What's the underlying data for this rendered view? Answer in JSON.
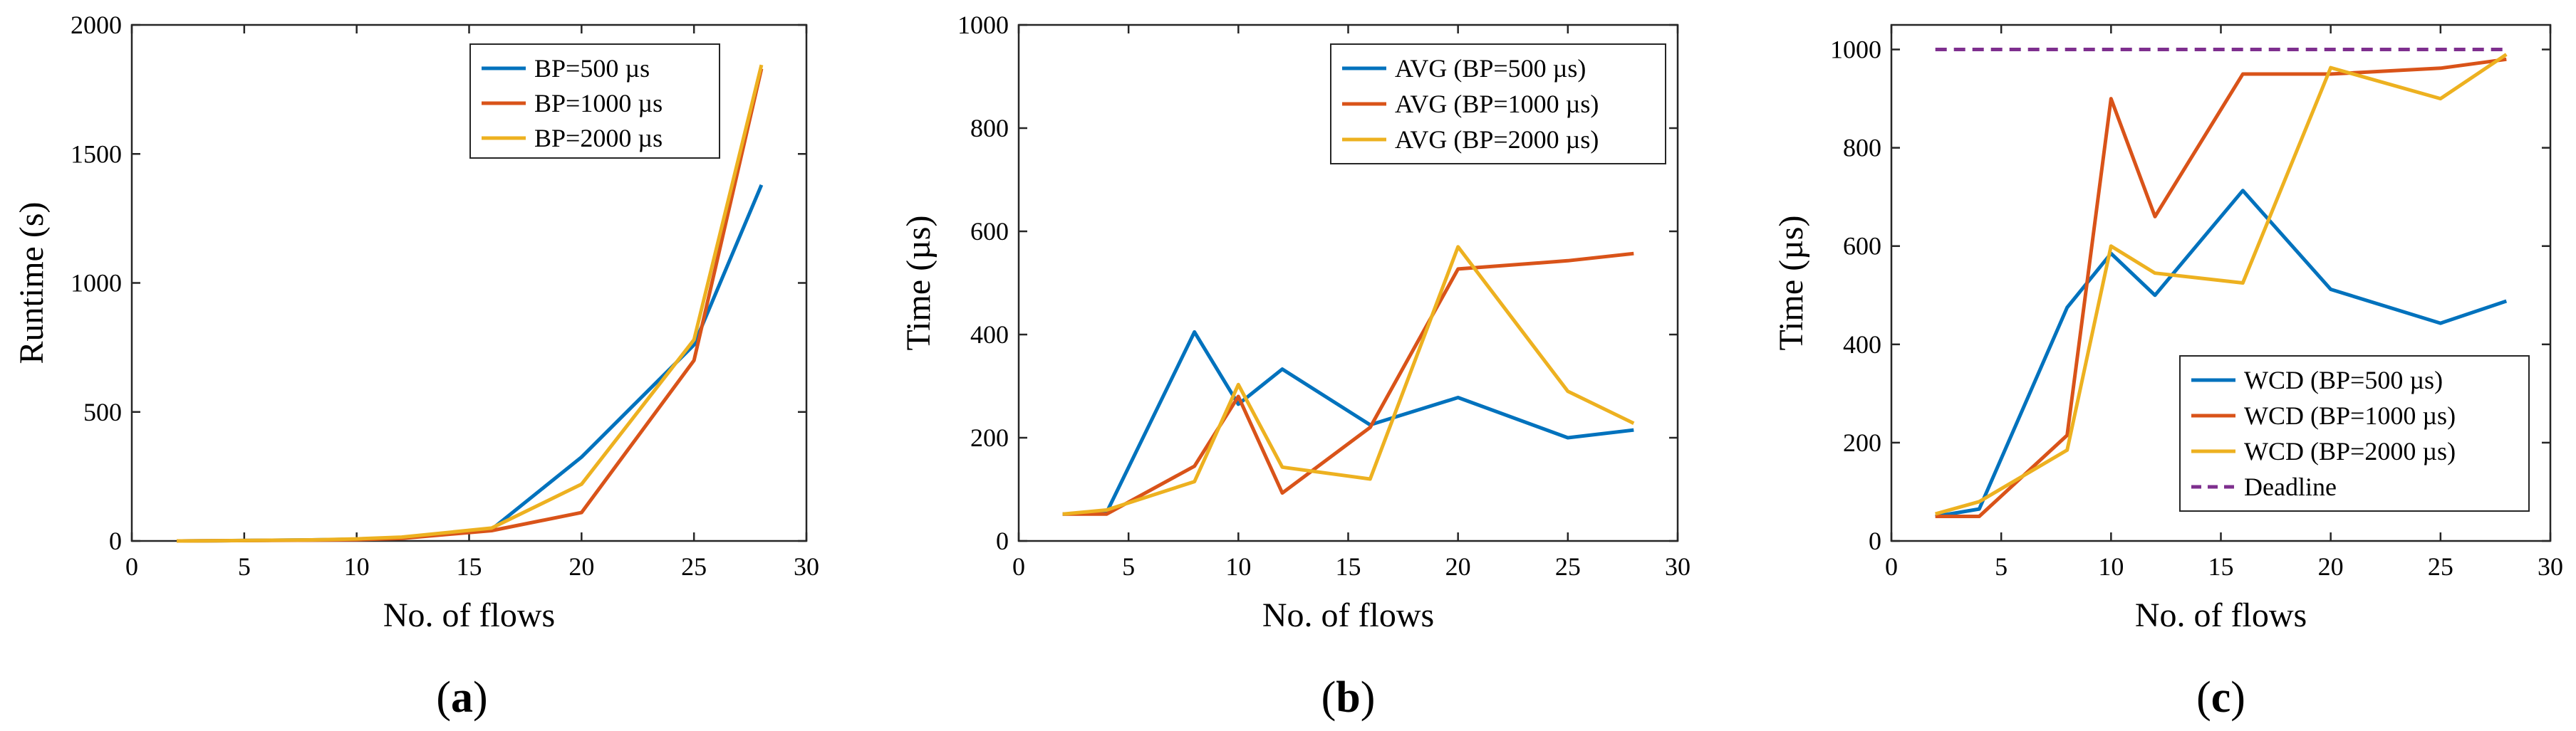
{
  "colors": {
    "blue": "#0072BD",
    "orange": "#D95319",
    "yellow": "#EDB120",
    "purple": "#7E2F8E"
  },
  "chart_data": [
    {
      "type": "line",
      "panel_label": "a",
      "title": "",
      "xlabel": "No. of flows",
      "ylabel": "Runtime (s)",
      "xlim": [
        0,
        30
      ],
      "ylim": [
        0,
        2000
      ],
      "xticks": [
        0,
        5,
        10,
        15,
        20,
        25,
        30
      ],
      "yticks": [
        0,
        500,
        1000,
        1500,
        2000
      ],
      "legend_position": "top-right",
      "series": [
        {
          "name": "BP=500 µs",
          "color": "#0072BD",
          "x": [
            2,
            4,
            8,
            10,
            12,
            16,
            20,
            25,
            28
          ],
          "y": [
            0,
            1,
            4,
            7,
            12,
            45,
            325,
            760,
            1380
          ]
        },
        {
          "name": "BP=1000 µs",
          "color": "#D95319",
          "x": [
            2,
            4,
            8,
            10,
            12,
            16,
            20,
            25,
            28
          ],
          "y": [
            0,
            1,
            3,
            5,
            10,
            40,
            110,
            700,
            1830
          ]
        },
        {
          "name": "BP=2000 µs",
          "color": "#EDB120",
          "x": [
            2,
            4,
            8,
            10,
            12,
            16,
            20,
            25,
            28
          ],
          "y": [
            0,
            1,
            4,
            8,
            15,
            50,
            220,
            780,
            1845
          ]
        }
      ]
    },
    {
      "type": "line",
      "panel_label": "b",
      "title": "",
      "xlabel": "No. of flows",
      "ylabel": "Time (µs)",
      "xlim": [
        0,
        30
      ],
      "ylim": [
        0,
        1000
      ],
      "xticks": [
        0,
        5,
        10,
        15,
        20,
        25,
        30
      ],
      "yticks": [
        0,
        200,
        400,
        600,
        800,
        1000
      ],
      "legend_position": "top-right",
      "series": [
        {
          "name": "AVG (BP=500 µs)",
          "color": "#0072BD",
          "x": [
            2,
            4,
            8,
            10,
            12,
            16,
            20,
            25,
            28
          ],
          "y": [
            52,
            55,
            405,
            265,
            333,
            225,
            278,
            200,
            215
          ]
        },
        {
          "name": "AVG (BP=1000 µs)",
          "color": "#D95319",
          "x": [
            2,
            4,
            8,
            10,
            12,
            16,
            20,
            25,
            28
          ],
          "y": [
            52,
            52,
            145,
            280,
            93,
            220,
            527,
            543,
            557
          ]
        },
        {
          "name": "AVG (BP=2000 µs)",
          "color": "#EDB120",
          "x": [
            2,
            4,
            8,
            10,
            12,
            16,
            20,
            25,
            28
          ],
          "y": [
            52,
            60,
            115,
            303,
            143,
            120,
            570,
            290,
            228
          ]
        }
      ]
    },
    {
      "type": "line",
      "panel_label": "c",
      "title": "",
      "xlabel": "No. of flows",
      "ylabel": "Time (µs)",
      "xlim": [
        0,
        30
      ],
      "ylim": [
        0,
        1050
      ],
      "xticks": [
        0,
        5,
        10,
        15,
        20,
        25,
        30
      ],
      "yticks": [
        0,
        200,
        400,
        600,
        800,
        1000
      ],
      "legend_position": "bottom-right",
      "series": [
        {
          "name": "WCD (BP=500 µs)",
          "color": "#0072BD",
          "x": [
            2,
            4,
            8,
            10,
            12,
            16,
            20,
            25,
            28
          ],
          "y": [
            50,
            65,
            475,
            585,
            500,
            713,
            512,
            443,
            488
          ]
        },
        {
          "name": "WCD (BP=1000 µs)",
          "color": "#D95319",
          "x": [
            2,
            4,
            8,
            10,
            12,
            16,
            20,
            25,
            28
          ],
          "y": [
            50,
            50,
            215,
            900,
            660,
            950,
            950,
            962,
            980
          ]
        },
        {
          "name": "WCD (BP=2000 µs)",
          "color": "#EDB120",
          "x": [
            2,
            4,
            8,
            10,
            12,
            16,
            20,
            25,
            28
          ],
          "y": [
            55,
            80,
            185,
            600,
            545,
            525,
            963,
            900,
            990
          ]
        },
        {
          "name": "Deadline",
          "color": "#7E2F8E",
          "dashed": true,
          "x": [
            2,
            28
          ],
          "y": [
            1000,
            1000
          ]
        }
      ]
    }
  ]
}
